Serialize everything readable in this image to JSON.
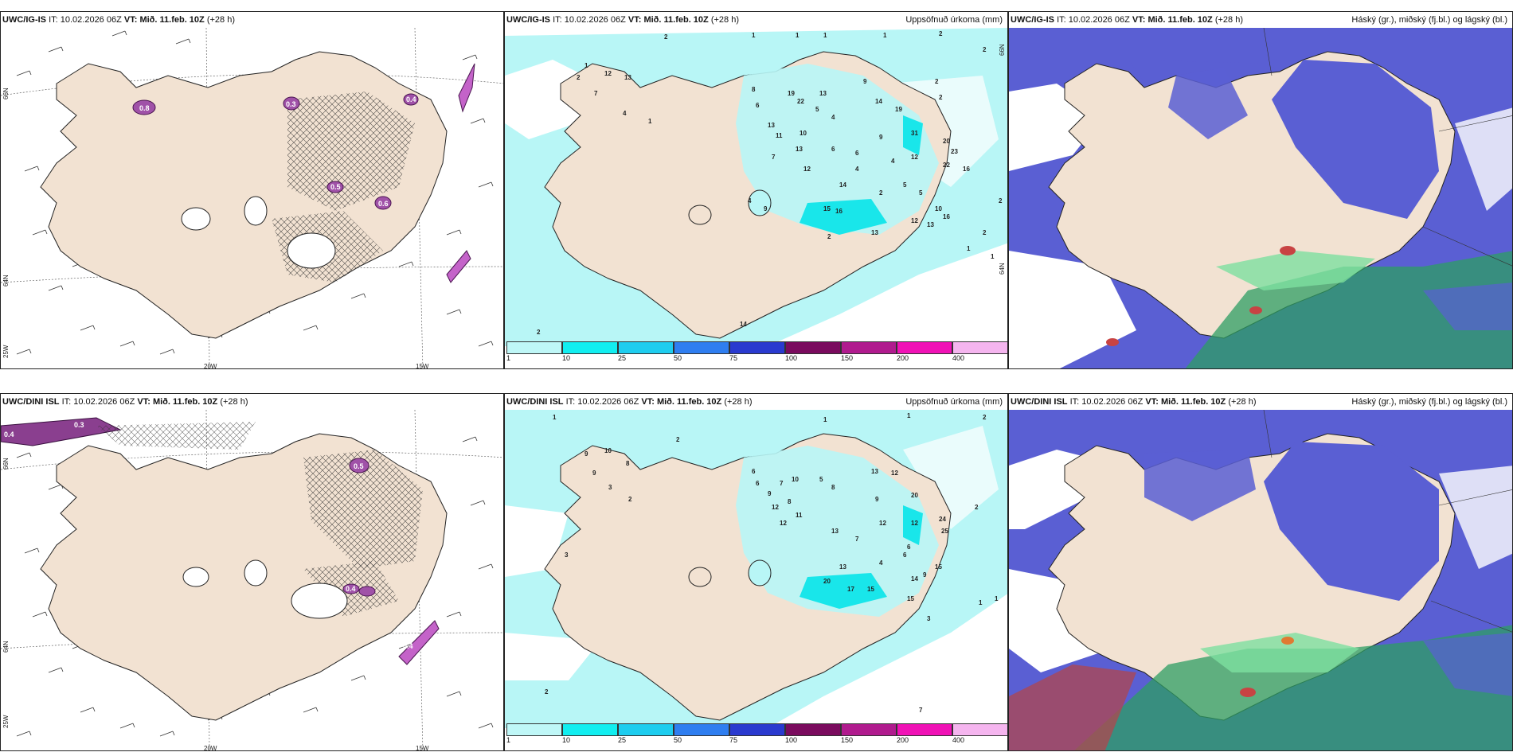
{
  "rows": [
    {
      "model": "UWC/IG-IS",
      "it_label": "IT:",
      "it_value": "10.02.2026 06Z",
      "vt_label": "VT:",
      "vt_value": "Mið. 11.feb. 10Z",
      "lead": "(+28 h)",
      "panel2_field": "Uppsöfnuð úrkoma (mm)",
      "panel3_field": "Háský (gr.), miðský (fj.bl.) og lágský (bl.)",
      "wind_panel_labels": [
        "0.8",
        "0.3",
        "0.5",
        "0.6",
        "0.4"
      ],
      "precip_labels": [
        "2",
        "1",
        "1",
        "1",
        "1",
        "2",
        "2",
        "1",
        "2",
        "12",
        "13",
        "7",
        "4",
        "1",
        "8",
        "19",
        "22",
        "13",
        "9",
        "14",
        "19",
        "2",
        "2",
        "6",
        "13",
        "11",
        "10",
        "5",
        "4",
        "31",
        "20",
        "16",
        "23",
        "22",
        "12",
        "9",
        "5",
        "7",
        "13",
        "6",
        "4",
        "12",
        "14",
        "2",
        "4",
        "5",
        "6",
        "15",
        "16",
        "10",
        "4",
        "9",
        "13",
        "16",
        "2",
        "13",
        "12",
        "14",
        "1",
        "2",
        "2",
        "1",
        "2"
      ]
    },
    {
      "model": "UWC/DINI ISL",
      "it_label": "IT:",
      "it_value": "10.02.2026 06Z",
      "vt_label": "VT:",
      "vt_value": "Mið. 11.feb. 10Z",
      "lead": "(+28 h)",
      "panel2_field": "Uppsöfnuð úrkoma (mm)",
      "panel3_field": "Háský (gr.), miðský (fj.bl.) og lágský (bl.)",
      "wind_panel_labels": [
        "0.4",
        "0.3",
        "0.5",
        "0.4",
        "0.4"
      ],
      "precip_labels": [
        "1",
        "2",
        "1",
        "1",
        "2",
        "9",
        "10",
        "8",
        "9",
        "6",
        "3",
        "2",
        "6",
        "9",
        "7",
        "10",
        "12",
        "8",
        "11",
        "12",
        "5",
        "8",
        "13",
        "12",
        "20",
        "9",
        "12",
        "24",
        "25",
        "12",
        "6",
        "13",
        "7",
        "13",
        "4",
        "20",
        "17",
        "15",
        "14",
        "15",
        "15",
        "3",
        "9",
        "6",
        "1",
        "1",
        "2",
        "7",
        "2",
        "3"
      ]
    }
  ],
  "legend": {
    "labels": [
      "1",
      "10",
      "25",
      "50",
      "75",
      "100",
      "150",
      "200",
      "400"
    ],
    "colors": [
      "#bff7f7",
      "#11eef0",
      "#1ecdef",
      "#2f7ef0",
      "#2a3acf",
      "#7a0b5e",
      "#b01b8e",
      "#f012b6",
      "#f5b5ef"
    ]
  },
  "axes": {
    "lon_labels": [
      "20W",
      "15W"
    ],
    "lat_labels_left": [
      "66N",
      "64N",
      "25W"
    ],
    "lat_labels_right": [
      "66N",
      "64N"
    ]
  },
  "colors": {
    "land": "#f2e2d2",
    "sea": "#ffffff",
    "precip_light": "#b8f6f6",
    "precip_mid": "#19e6ea",
    "cloud_mid": "#5a5fd3",
    "cloud_low": "#3e63d8",
    "cloud_high_green": "#2e9e63",
    "icing_purple": "#a052a8"
  }
}
